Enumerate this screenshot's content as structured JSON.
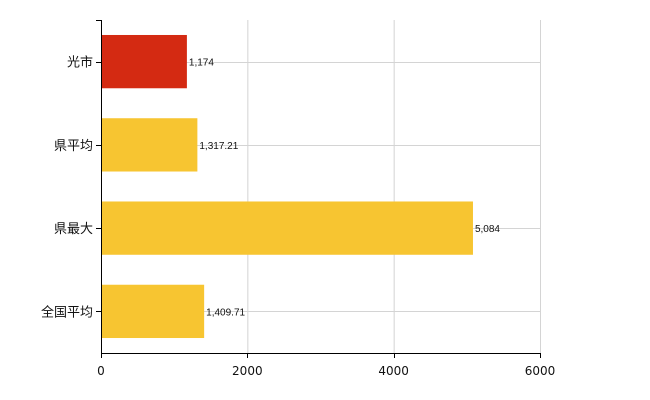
{
  "chart_data": {
    "type": "bar",
    "orientation": "horizontal",
    "categories": [
      "光市",
      "県平均",
      "県最大",
      "全国平均"
    ],
    "values": [
      1174,
      1317.21,
      5084,
      1409.71
    ],
    "value_labels": [
      "1,174",
      "1,317.21",
      "5,084",
      "1,409.71"
    ],
    "bar_colors": [
      "#d42a12",
      "#f7c531",
      "#f7c531",
      "#f7c531"
    ],
    "xlim": [
      0,
      6000
    ],
    "x_ticks": [
      0,
      2000,
      4000,
      6000
    ],
    "x_tick_labels": [
      "0",
      "2000",
      "4000",
      "6000"
    ],
    "grid": true,
    "legend": "none",
    "title": "",
    "xlabel": "",
    "ylabel": ""
  }
}
